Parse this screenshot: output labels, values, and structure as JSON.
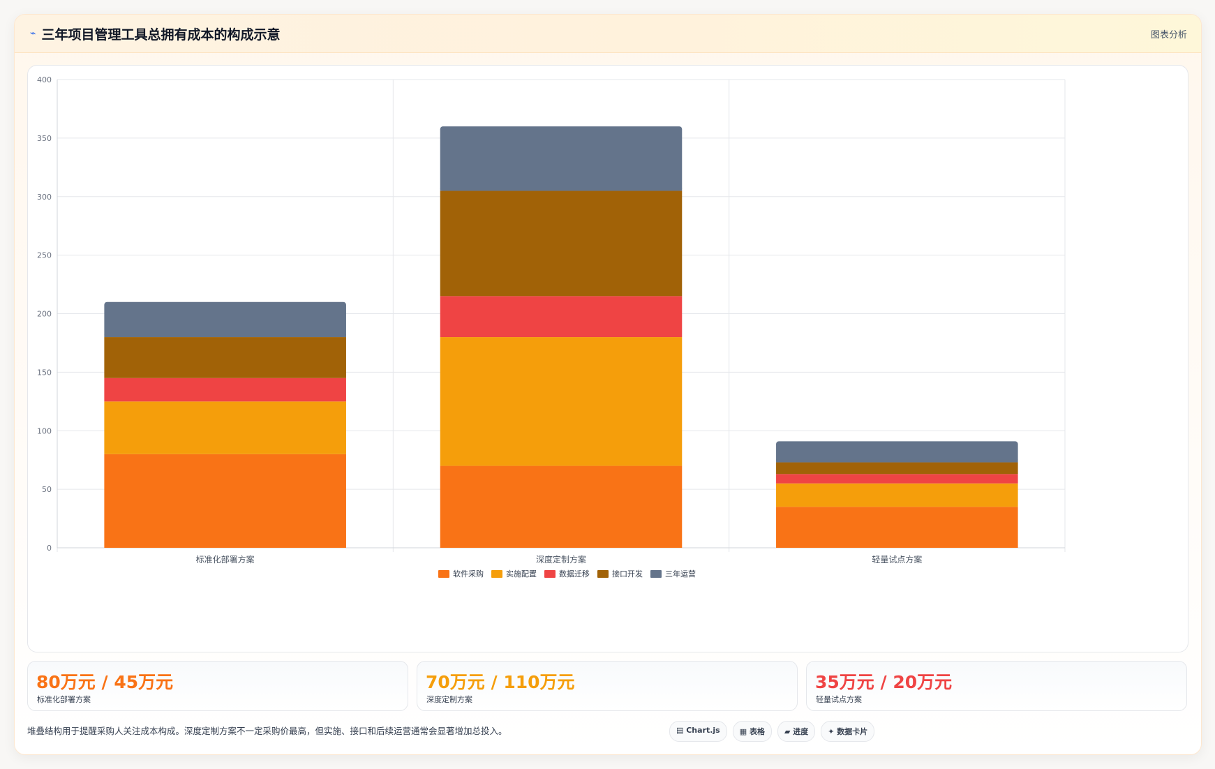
{
  "header": {
    "icon": "chart-line-icon",
    "title": "三年项目管理工具总拥有成本的构成示意",
    "tag": "图表分析"
  },
  "chart_data": {
    "type": "bar",
    "stacked": true,
    "categories": [
      "标准化部署方案",
      "深度定制方案",
      "轻量试点方案"
    ],
    "series": [
      {
        "name": "软件采购",
        "color": "#f97316",
        "values": [
          80,
          70,
          35
        ]
      },
      {
        "name": "实施配置",
        "color": "#f59e0b",
        "values": [
          45,
          110,
          20
        ]
      },
      {
        "name": "数据迁移",
        "color": "#ef4444",
        "values": [
          20,
          35,
          8
        ]
      },
      {
        "name": "接口开发",
        "color": "#a16207",
        "values": [
          35,
          90,
          10
        ]
      },
      {
        "name": "三年运营",
        "color": "#64748b",
        "values": [
          30,
          55,
          18
        ]
      }
    ],
    "ylim": [
      0,
      400
    ],
    "yticks": [
      0,
      50,
      100,
      150,
      200,
      250,
      300,
      350,
      400
    ],
    "grid": true,
    "legend": "bottom"
  },
  "stats": [
    {
      "value": "80万元 / 45万元",
      "label": "标准化部署方案",
      "color": "#f97316"
    },
    {
      "value": "70万元 / 110万元",
      "label": "深度定制方案",
      "color": "#f59e0b"
    },
    {
      "value": "35万元 / 20万元",
      "label": "轻量试点方案",
      "color": "#ef4444"
    }
  ],
  "footer": {
    "note": "堆叠结构用于提醒采购人关注成本构成。深度定制方案不一定采购价最高，但实施、接口和后续运营通常会显著增加总投入。",
    "chips": [
      "▤ Chart.js",
      "▦ 表格",
      "▰ 进度",
      "✦ 数据卡片"
    ]
  }
}
